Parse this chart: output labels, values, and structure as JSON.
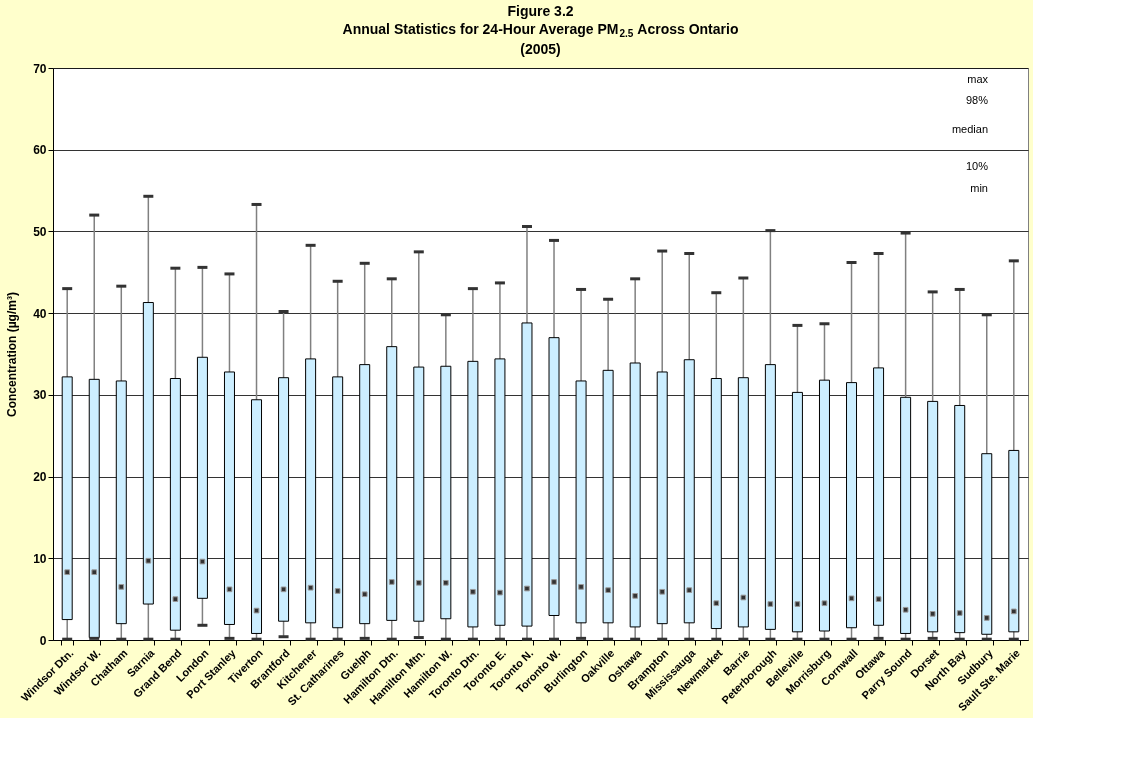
{
  "chart_data": {
    "type": "box",
    "title": "Figure 3.2",
    "subtitle": "Annual Statistics for 24-Hour Average PM$_{2.5}$ Across Ontario\n(2005)",
    "ylabel": "Concentration (µg/m³)",
    "categories": [
      "Windsor Dtn.",
      "Windsor W.",
      "Chatham",
      "Sarnia",
      "Grand Bend",
      "London",
      "Port Stanley",
      "Tiverton",
      "Brantford",
      "Kitchener",
      "St. Catharines",
      "Guelph",
      "Hamilton Dtn.",
      "Hamilton Mtn.",
      "Hamilton W.",
      "Toronto Dtn.",
      "Toronto E.",
      "Toronto N.",
      "Toronto W.",
      "Burlington",
      "Oakville",
      "Oshawa",
      "Brampton",
      "Mississauga",
      "Newmarket",
      "Barrie",
      "Peterborough",
      "Belleville",
      "Morrisburg",
      "Cornwall",
      "Ottawa",
      "Parry Sound",
      "Dorset",
      "North Bay",
      "Sudbury",
      "Sault Ste. Marie"
    ],
    "boxes": [
      {
        "low": 0.1,
        "q1": 2.5,
        "median": 8.3,
        "q3": 32.2,
        "high": 43.0
      },
      {
        "low": 0.2,
        "q1": 0.3,
        "median": 8.3,
        "q3": 31.9,
        "high": 52.0
      },
      {
        "low": 0.1,
        "q1": 2.0,
        "median": 6.5,
        "q3": 31.7,
        "high": 43.3
      },
      {
        "low": 0.1,
        "q1": 4.4,
        "median": 9.7,
        "q3": 41.3,
        "high": 54.3
      },
      {
        "low": 0.1,
        "q1": 1.2,
        "median": 5.0,
        "q3": 32.0,
        "high": 45.5
      },
      {
        "low": 1.8,
        "q1": 5.1,
        "median": 9.6,
        "q3": 34.6,
        "high": 45.6
      },
      {
        "low": 0.2,
        "q1": 1.9,
        "median": 6.2,
        "q3": 32.8,
        "high": 44.8
      },
      {
        "low": 0.1,
        "q1": 0.8,
        "median": 3.6,
        "q3": 29.4,
        "high": 53.3
      },
      {
        "low": 0.4,
        "q1": 2.3,
        "median": 6.2,
        "q3": 32.1,
        "high": 40.2
      },
      {
        "low": 0.1,
        "q1": 2.1,
        "median": 6.4,
        "q3": 34.4,
        "high": 48.3
      },
      {
        "low": 0.1,
        "q1": 1.5,
        "median": 6.0,
        "q3": 32.2,
        "high": 43.9
      },
      {
        "low": 0.2,
        "q1": 2.0,
        "median": 5.6,
        "q3": 33.7,
        "high": 46.1
      },
      {
        "low": 0.1,
        "q1": 2.4,
        "median": 7.1,
        "q3": 35.9,
        "high": 44.2
      },
      {
        "low": 0.3,
        "q1": 2.3,
        "median": 7.0,
        "q3": 33.4,
        "high": 47.5
      },
      {
        "low": 0.1,
        "q1": 2.6,
        "median": 7.0,
        "q3": 33.5,
        "high": 39.8
      },
      {
        "low": 0.1,
        "q1": 1.6,
        "median": 5.9,
        "q3": 34.1,
        "high": 43.0
      },
      {
        "low": 0.1,
        "q1": 1.8,
        "median": 5.8,
        "q3": 34.4,
        "high": 43.7
      },
      {
        "low": 0.1,
        "q1": 1.7,
        "median": 6.3,
        "q3": 38.8,
        "high": 50.6
      },
      {
        "low": 0.1,
        "q1": 3.0,
        "median": 7.1,
        "q3": 37.0,
        "high": 48.9
      },
      {
        "low": 0.2,
        "q1": 2.1,
        "median": 6.5,
        "q3": 31.7,
        "high": 42.9
      },
      {
        "low": 0.1,
        "q1": 2.1,
        "median": 6.1,
        "q3": 33.0,
        "high": 41.7
      },
      {
        "low": 0.1,
        "q1": 1.6,
        "median": 5.4,
        "q3": 33.9,
        "high": 44.2
      },
      {
        "low": 0.1,
        "q1": 2.0,
        "median": 5.9,
        "q3": 32.8,
        "high": 47.6
      },
      {
        "low": 0.1,
        "q1": 2.1,
        "median": 6.1,
        "q3": 34.3,
        "high": 47.3
      },
      {
        "low": 0.1,
        "q1": 1.4,
        "median": 4.5,
        "q3": 32.0,
        "high": 42.5
      },
      {
        "low": 0.1,
        "q1": 1.6,
        "median": 5.2,
        "q3": 32.1,
        "high": 44.3
      },
      {
        "low": 0.1,
        "q1": 1.3,
        "median": 4.4,
        "q3": 33.7,
        "high": 50.1
      },
      {
        "low": 0.1,
        "q1": 1.0,
        "median": 4.4,
        "q3": 30.3,
        "high": 38.5
      },
      {
        "low": 0.1,
        "q1": 1.1,
        "median": 4.5,
        "q3": 31.8,
        "high": 38.7
      },
      {
        "low": 0.1,
        "q1": 1.5,
        "median": 5.1,
        "q3": 31.5,
        "high": 46.2
      },
      {
        "low": 0.2,
        "q1": 1.8,
        "median": 5.0,
        "q3": 33.3,
        "high": 47.3
      },
      {
        "low": 0.1,
        "q1": 0.8,
        "median": 3.7,
        "q3": 29.7,
        "high": 49.8
      },
      {
        "low": 0.2,
        "q1": 1.0,
        "median": 3.2,
        "q3": 29.2,
        "high": 42.6
      },
      {
        "low": 0.1,
        "q1": 0.9,
        "median": 3.3,
        "q3": 28.7,
        "high": 42.9
      },
      {
        "low": 0.1,
        "q1": 0.7,
        "median": 2.7,
        "q3": 22.8,
        "high": 39.8
      },
      {
        "low": 0.1,
        "q1": 1.0,
        "median": 3.5,
        "q3": 23.2,
        "high": 46.4
      }
    ],
    "color": "#cceeff",
    "ylim": [
      0,
      70
    ],
    "yticks": [
      0,
      10,
      20,
      30,
      40,
      50,
      60,
      70
    ],
    "grid": "y",
    "annotations": [
      "max",
      "98%",
      "median",
      "10%",
      "min"
    ]
  }
}
